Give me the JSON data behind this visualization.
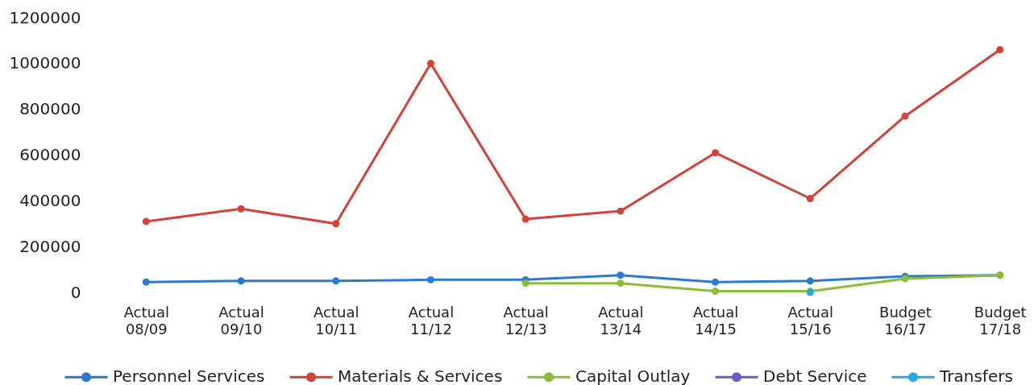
{
  "chart_data": {
    "type": "line",
    "categories": [
      "Actual 08/09",
      "Actual 09/10",
      "Actual 10/11",
      "Actual 11/12",
      "Actual 12/13",
      "Actual 13/14",
      "Actual 14/15",
      "Actual 15/16",
      "Budget 16/17",
      "Budget 17/18"
    ],
    "series": [
      {
        "name": "Personnel Services",
        "color": "#2a7ad2",
        "values": [
          45000,
          50000,
          50000,
          55000,
          55000,
          75000,
          45000,
          50000,
          70000,
          75000
        ]
      },
      {
        "name": "Materials & Services",
        "color": "#d4403a",
        "values": [
          310000,
          365000,
          300000,
          1000000,
          320000,
          355000,
          610000,
          410000,
          770000,
          1060000
        ]
      },
      {
        "name": "Capital Outlay",
        "color": "#8bbd3a",
        "values": [
          null,
          null,
          null,
          null,
          40000,
          40000,
          5000,
          5000,
          60000,
          75000
        ]
      },
      {
        "name": "Debt Service",
        "color": "#6a5bc8",
        "values": [
          null,
          null,
          null,
          null,
          null,
          null,
          null,
          null,
          null,
          null
        ]
      },
      {
        "name": "Transfers",
        "color": "#29a9e0",
        "values": [
          null,
          null,
          null,
          null,
          null,
          null,
          null,
          0,
          null,
          null
        ]
      }
    ],
    "ylim": [
      0,
      1200000
    ],
    "yticks": [
      0,
      200000,
      400000,
      600000,
      800000,
      1000000,
      1200000
    ],
    "grid": false,
    "legend": "bottom",
    "marker": "circle",
    "line_style": "solid"
  }
}
